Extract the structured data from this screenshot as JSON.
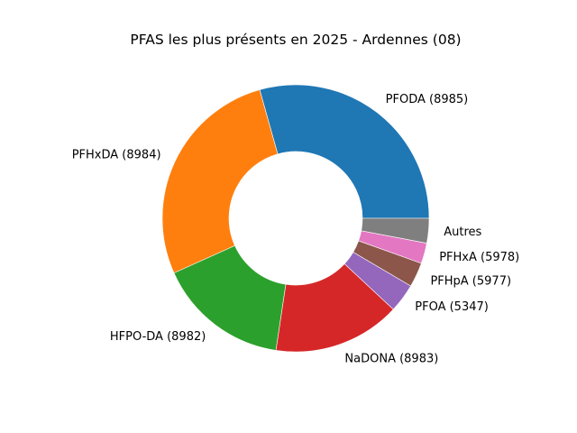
{
  "chart_data": {
    "type": "pie",
    "style": "donut",
    "title": "PFAS les plus présents en 2025 - Ardennes (08)",
    "start_angle_deg": 0,
    "direction": "counterclockwise",
    "slices": [
      {
        "label": "PFODA (8985)",
        "value": 29.5,
        "color": "#1f77b4"
      },
      {
        "label": "PFHxDA (8984)",
        "value": 27.5,
        "color": "#ff7f0e"
      },
      {
        "label": "HFPO-DA (8982)",
        "value": 16.0,
        "color": "#2ca02c"
      },
      {
        "label": "NaDONA (8983)",
        "value": 15.5,
        "color": "#d62728"
      },
      {
        "label": "PFOA (5347)",
        "value": 3.5,
        "color": "#9467bd"
      },
      {
        "label": "PFHpA (5977)",
        "value": 3.0,
        "color": "#8c564b"
      },
      {
        "label": "PFHxA (5978)",
        "value": 2.5,
        "color": "#e377c2"
      },
      {
        "label": "Autres",
        "value": 3.0,
        "color": "#7f7f7f"
      }
    ]
  }
}
